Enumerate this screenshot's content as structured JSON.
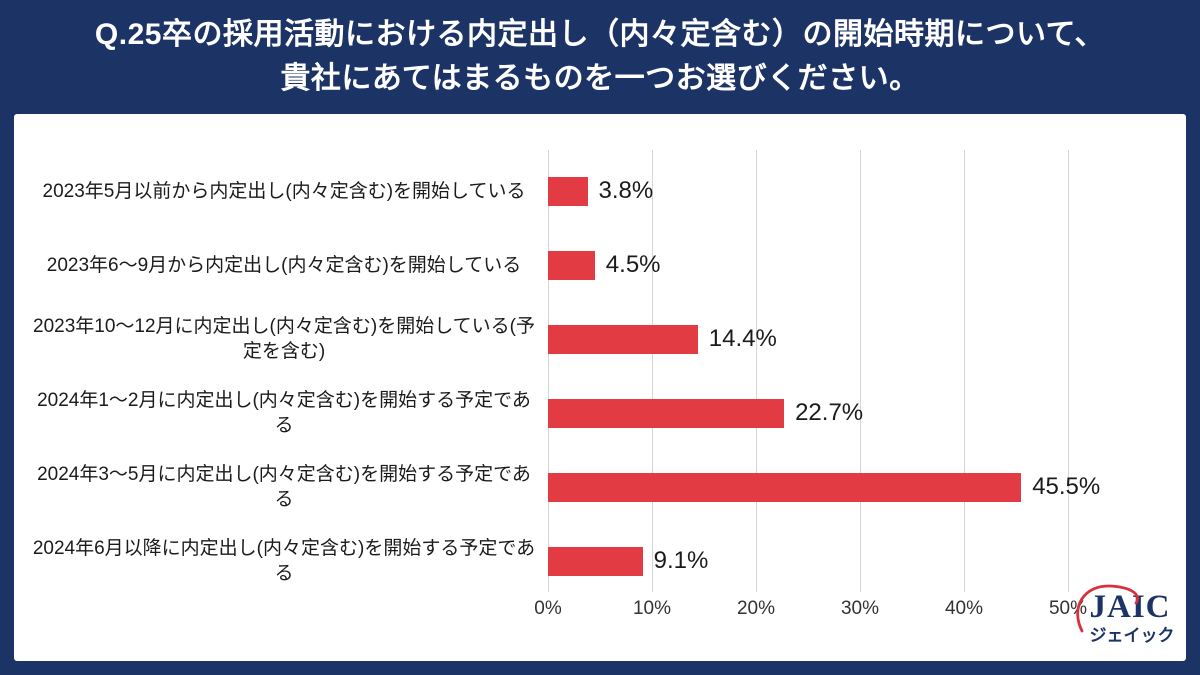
{
  "title": {
    "line1": "Q.25卒の採用活動における内定出し（内々定含む）の開始時期について、",
    "line2": "貴社にあてはまるものを一つお選びください。"
  },
  "chart_data": {
    "type": "bar",
    "orientation": "horizontal",
    "title": "Q.25卒の採用活動における内定出し（内々定含む）の開始時期について、貴社にあてはまるものを一つお選びください。",
    "categories": [
      "2023年5月以前から内定出し(内々定含む)を開始している",
      "2023年6～9月から内定出し(内々定含む)を開始している",
      "2023年10～12月に内定出し(内々定含む)を開始している(予定を含む)",
      "2024年1～2月に内定出し(内々定含む)を開始する予定である",
      "2024年3～5月に内定出し(内々定含む)を開始する予定である",
      "2024年6月以降に内定出し(内々定含む)を開始する予定である"
    ],
    "values": [
      3.8,
      4.5,
      14.4,
      22.7,
      45.5,
      9.1
    ],
    "value_labels": [
      "3.8%",
      "4.5%",
      "14.4%",
      "22.7%",
      "45.5%",
      "9.1%"
    ],
    "xlabel": "",
    "ylabel": "",
    "xlim": [
      0,
      50
    ],
    "x_tick_values": [
      0,
      10,
      20,
      30,
      40,
      50
    ],
    "x_tick_labels": [
      "0%",
      "10%",
      "20%",
      "30%",
      "40%",
      "50%"
    ],
    "grid": true,
    "legend": false,
    "bar_color": "#E23B43"
  },
  "logo": {
    "text": "JAIC",
    "subtext": "ジェイック"
  },
  "colors": {
    "background_navy": "#1C3366",
    "panel_white": "#FFFFFF",
    "bar_red": "#E23B43",
    "gridline_gray": "#D6D6D6",
    "title_text": "#FFFFFF",
    "body_text": "#1B1B1B",
    "logo_navy": "#1C3366",
    "logo_swoosh_red": "#D93040"
  }
}
